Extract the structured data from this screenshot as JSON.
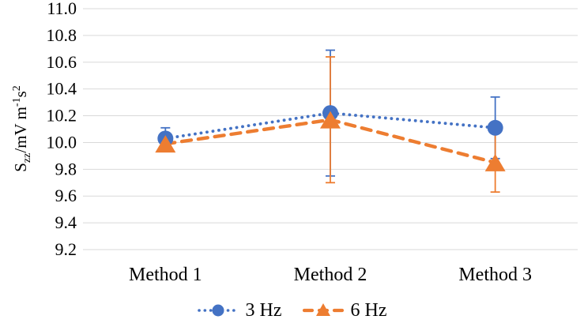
{
  "chart_data": {
    "type": "line",
    "title": "",
    "categories": [
      "Method 1",
      "Method 2",
      "Method 3"
    ],
    "series": [
      {
        "name": "3 Hz",
        "color": "#4472C4",
        "marker": "circle",
        "line_style": "dotted",
        "values": [
          10.03,
          10.22,
          10.11
        ],
        "error_bars": [
          0.08,
          0.47,
          0.23
        ]
      },
      {
        "name": "6 Hz",
        "color": "#ED7D31",
        "marker": "triangle",
        "line_style": "dashed",
        "values": [
          9.99,
          10.17,
          9.85
        ],
        "error_bars": [
          0.05,
          0.47,
          0.22
        ]
      }
    ],
    "ylabel_parts": {
      "base": "S",
      "sub": "zz",
      "mid": "/mV m",
      "sup1": "-1",
      "unit_s": "s",
      "sup2": "2"
    },
    "y_axis": {
      "min": 9.2,
      "max": 11.0,
      "step": 0.2,
      "tick_labels": [
        "11.0",
        "10.8",
        "10.6",
        "10.4",
        "10.2",
        "10.0",
        "9.8",
        "9.6",
        "9.4",
        "9.2"
      ]
    },
    "grid": true,
    "gridline_color": "#D9D9D9",
    "text_color": "#000000",
    "background": "#FFFFFF",
    "legend_position": "bottom"
  }
}
